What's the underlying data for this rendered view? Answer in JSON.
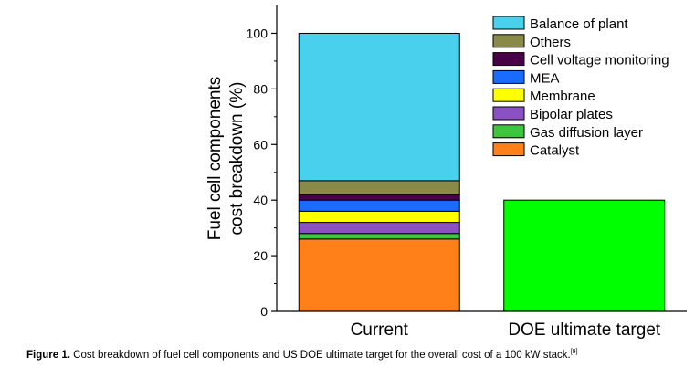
{
  "chart_data": {
    "type": "bar",
    "stacked": true,
    "categories": [
      "Current",
      "DOE ultimate target"
    ],
    "ylabel": [
      "Fuel cell components",
      "cost breakdown (%)"
    ],
    "ylim": [
      0,
      110
    ],
    "yticks": [
      0,
      20,
      40,
      60,
      80,
      100
    ],
    "grid": false,
    "legend_position": "top-right",
    "series": [
      {
        "name": "Catalyst",
        "color": "#ff8019",
        "values": [
          26,
          null
        ]
      },
      {
        "name": "Gas diffusion layer",
        "color": "#3fc43f",
        "values": [
          2,
          null
        ]
      },
      {
        "name": "Bipolar plates",
        "color": "#8b50c4",
        "values": [
          4,
          null
        ]
      },
      {
        "name": "Membrane",
        "color": "#ffff00",
        "values": [
          4,
          null
        ]
      },
      {
        "name": "MEA",
        "color": "#1a6cff",
        "values": [
          4,
          null
        ]
      },
      {
        "name": "Cell voltage monitoring",
        "color": "#4a0046",
        "values": [
          2,
          null
        ]
      },
      {
        "name": "Others",
        "color": "#8a8a48",
        "values": [
          5,
          null
        ]
      },
      {
        "name": "Balance of plant",
        "color": "#48d0ec",
        "values": [
          53,
          null
        ]
      }
    ],
    "total_bars": [
      {
        "category": "DOE ultimate target",
        "value": 40,
        "color": "#00ff00"
      }
    ],
    "legend_order": [
      "Balance of plant",
      "Others",
      "Cell voltage monitoring",
      "MEA",
      "Membrane",
      "Bipolar plates",
      "Gas diffusion layer",
      "Catalyst"
    ]
  },
  "caption": {
    "label": "Figure 1.",
    "text": "Cost breakdown of fuel cell components and US DOE ultimate target for the overall cost of a 100 kW stack.",
    "ref": "[9]"
  }
}
